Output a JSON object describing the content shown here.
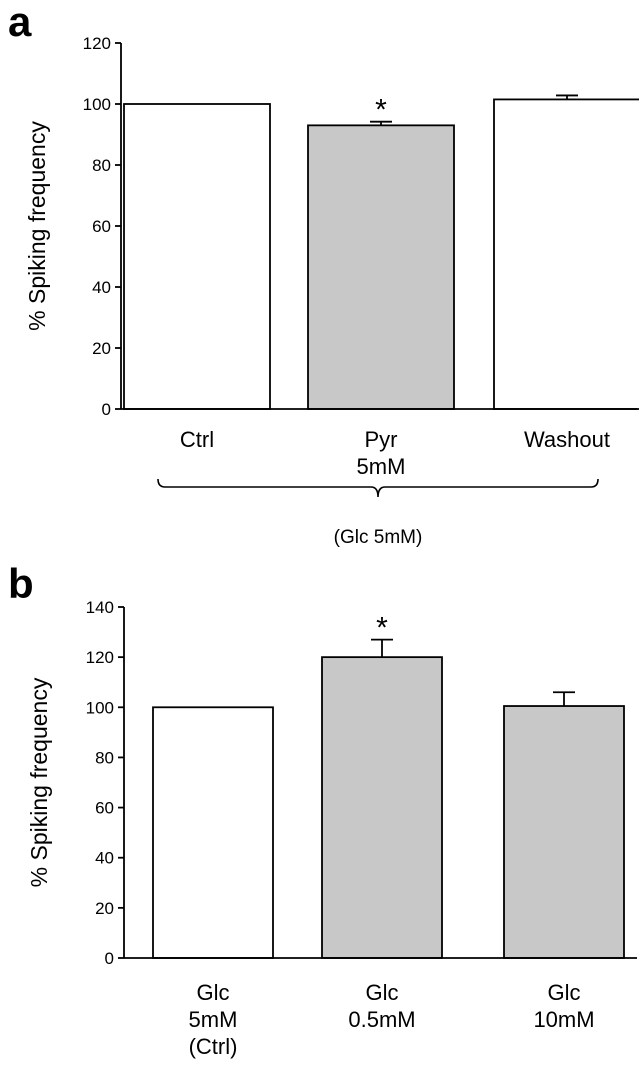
{
  "chart_data": [
    {
      "panel": "a",
      "type": "bar",
      "ylabel": "% Spiking frequency",
      "ylim": [
        0,
        120
      ],
      "yticks": [
        0,
        20,
        40,
        60,
        80,
        100,
        120
      ],
      "categories": [
        [
          "Ctrl"
        ],
        [
          "Pyr",
          "5mM"
        ],
        [
          "Washout"
        ]
      ],
      "values": [
        100,
        93,
        101.5
      ],
      "errors": [
        0,
        1.2,
        1.3
      ],
      "fills": [
        "#ffffff",
        "#c8c8c8",
        "#ffffff"
      ],
      "significance": [
        "",
        "*",
        ""
      ],
      "group_label": "(Glc 5mM)",
      "grid": false
    },
    {
      "panel": "b",
      "type": "bar",
      "ylabel": "% Spiking frequency",
      "ylim": [
        0,
        140
      ],
      "yticks": [
        0,
        20,
        40,
        60,
        80,
        100,
        120,
        140
      ],
      "categories": [
        [
          "Glc",
          "5mM",
          "(Ctrl)"
        ],
        [
          "Glc",
          "0.5mM"
        ],
        [
          "Glc",
          "10mM"
        ]
      ],
      "values": [
        100,
        120,
        100.5
      ],
      "errors": [
        0,
        7,
        5.5
      ],
      "fills": [
        "#ffffff",
        "#c8c8c8",
        "#c8c8c8"
      ],
      "significance": [
        "",
        "*",
        ""
      ],
      "grid": false
    }
  ]
}
